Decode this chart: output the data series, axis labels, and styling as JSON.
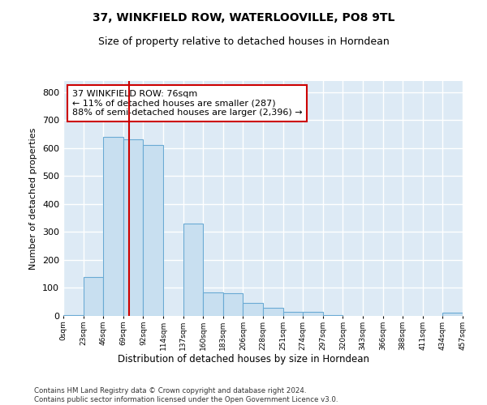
{
  "title": "37, WINKFIELD ROW, WATERLOOVILLE, PO8 9TL",
  "subtitle": "Size of property relative to detached houses in Horndean",
  "xlabel": "Distribution of detached houses by size in Horndean",
  "ylabel": "Number of detached properties",
  "bar_color": "#c8dff0",
  "bar_edge_color": "#6aaad4",
  "background_color": "#ddeaf5",
  "grid_color": "#ffffff",
  "annotation_text": "37 WINKFIELD ROW: 76sqm\n← 11% of detached houses are smaller (287)\n88% of semi-detached houses are larger (2,396) →",
  "annotation_box_color": "#ffffff",
  "annotation_box_edge": "#cc0000",
  "vline_x": 76,
  "vline_color": "#cc0000",
  "footer": "Contains HM Land Registry data © Crown copyright and database right 2024.\nContains public sector information licensed under the Open Government Licence v3.0.",
  "bin_edges": [
    0,
    23,
    46,
    69,
    92,
    115,
    138,
    161,
    184,
    207,
    230,
    253,
    276,
    299,
    322,
    345,
    368,
    391,
    414,
    437,
    460
  ],
  "bin_labels": [
    "0sqm",
    "23sqm",
    "46sqm",
    "69sqm",
    "92sqm",
    "114sqm",
    "137sqm",
    "160sqm",
    "183sqm",
    "206sqm",
    "228sqm",
    "251sqm",
    "274sqm",
    "297sqm",
    "320sqm",
    "343sqm",
    "366sqm",
    "388sqm",
    "411sqm",
    "434sqm",
    "457sqm"
  ],
  "counts": [
    2,
    140,
    640,
    632,
    610,
    0,
    330,
    85,
    80,
    45,
    30,
    15,
    15,
    2,
    0,
    0,
    0,
    0,
    0,
    12
  ],
  "ylim": [
    0,
    840
  ],
  "yticks": [
    0,
    100,
    200,
    300,
    400,
    500,
    600,
    700,
    800
  ]
}
